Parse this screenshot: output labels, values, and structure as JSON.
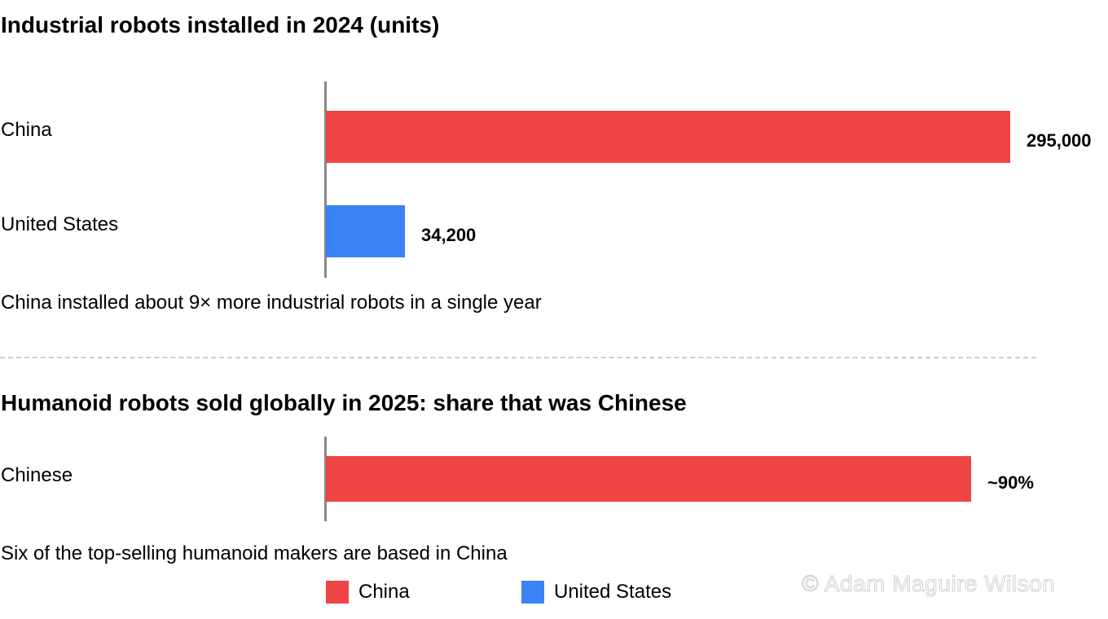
{
  "colors": {
    "china": "#ef4444",
    "united_states": "#3b82f6",
    "axis": "#888888",
    "divider": "#cccccc"
  },
  "chart_data": [
    {
      "type": "bar",
      "orientation": "horizontal",
      "title": "Industrial robots installed in 2024 (units)",
      "categories": [
        "China",
        "United States"
      ],
      "values": [
        295000,
        34200
      ],
      "value_labels": [
        "295,000",
        "34,200"
      ],
      "bar_colors": [
        "#ef4444",
        "#3b82f6"
      ],
      "xlim": [
        0,
        295000
      ],
      "grid": false,
      "caption": "China installed about 9× more industrial robots in a single year"
    },
    {
      "type": "bar",
      "orientation": "horizontal",
      "title": "Humanoid robots sold globally in 2025: share that was Chinese",
      "categories": [
        "Chinese"
      ],
      "values": [
        90
      ],
      "value_labels": [
        "~90%"
      ],
      "bar_colors": [
        "#ef4444"
      ],
      "xlim": [
        0,
        100
      ],
      "grid": false,
      "caption": "Six of the top-selling humanoid makers are based in China"
    }
  ],
  "legend": {
    "placement": "bottom",
    "items": [
      {
        "label": "China",
        "color": "#ef4444"
      },
      {
        "label": "United States",
        "color": "#3b82f6"
      }
    ]
  },
  "watermark": "© Adam Maguire Wilson"
}
